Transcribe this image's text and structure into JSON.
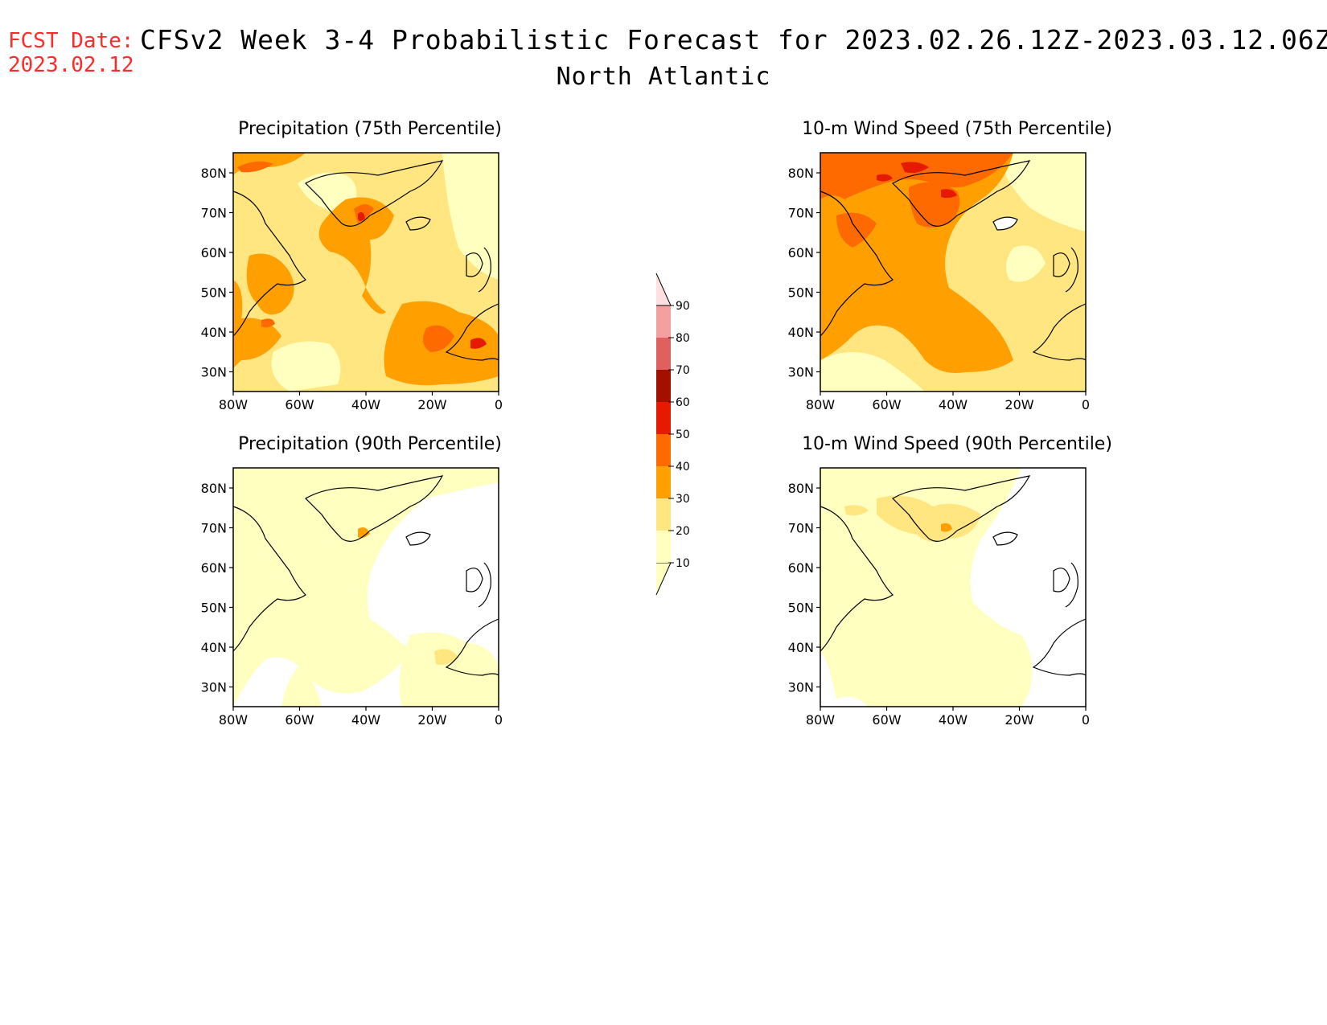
{
  "header": {
    "fcst_label": "FCST Date:",
    "fcst_date": "2023.02.12",
    "title": "CFSv2 Week 3-4 Probabilistic Forecast for 2023.02.26.12Z-2023.03.12.06Z",
    "region": "North Atlantic"
  },
  "axes": {
    "lat_labels": [
      "80N",
      "70N",
      "60N",
      "50N",
      "40N",
      "30N"
    ],
    "lon_labels": [
      "80W",
      "60W",
      "40W",
      "20W",
      "0"
    ]
  },
  "panels": [
    {
      "title": "Precipitation (75th Percentile)"
    },
    {
      "title": "10-m Wind Speed (75th Percentile)"
    },
    {
      "title": "Precipitation (90th Percentile)"
    },
    {
      "title": "10-m Wind Speed (90th Percentile)"
    }
  ],
  "colorbar": {
    "levels": [
      "10",
      "20",
      "30",
      "40",
      "50",
      "60",
      "70",
      "80",
      "90"
    ],
    "colors": [
      "#ffffc0",
      "#ffe680",
      "#ffa000",
      "#ff6a00",
      "#e61a00",
      "#a50f00",
      "#e06060",
      "#f4a0a0",
      "#ffe0e0"
    ]
  }
}
